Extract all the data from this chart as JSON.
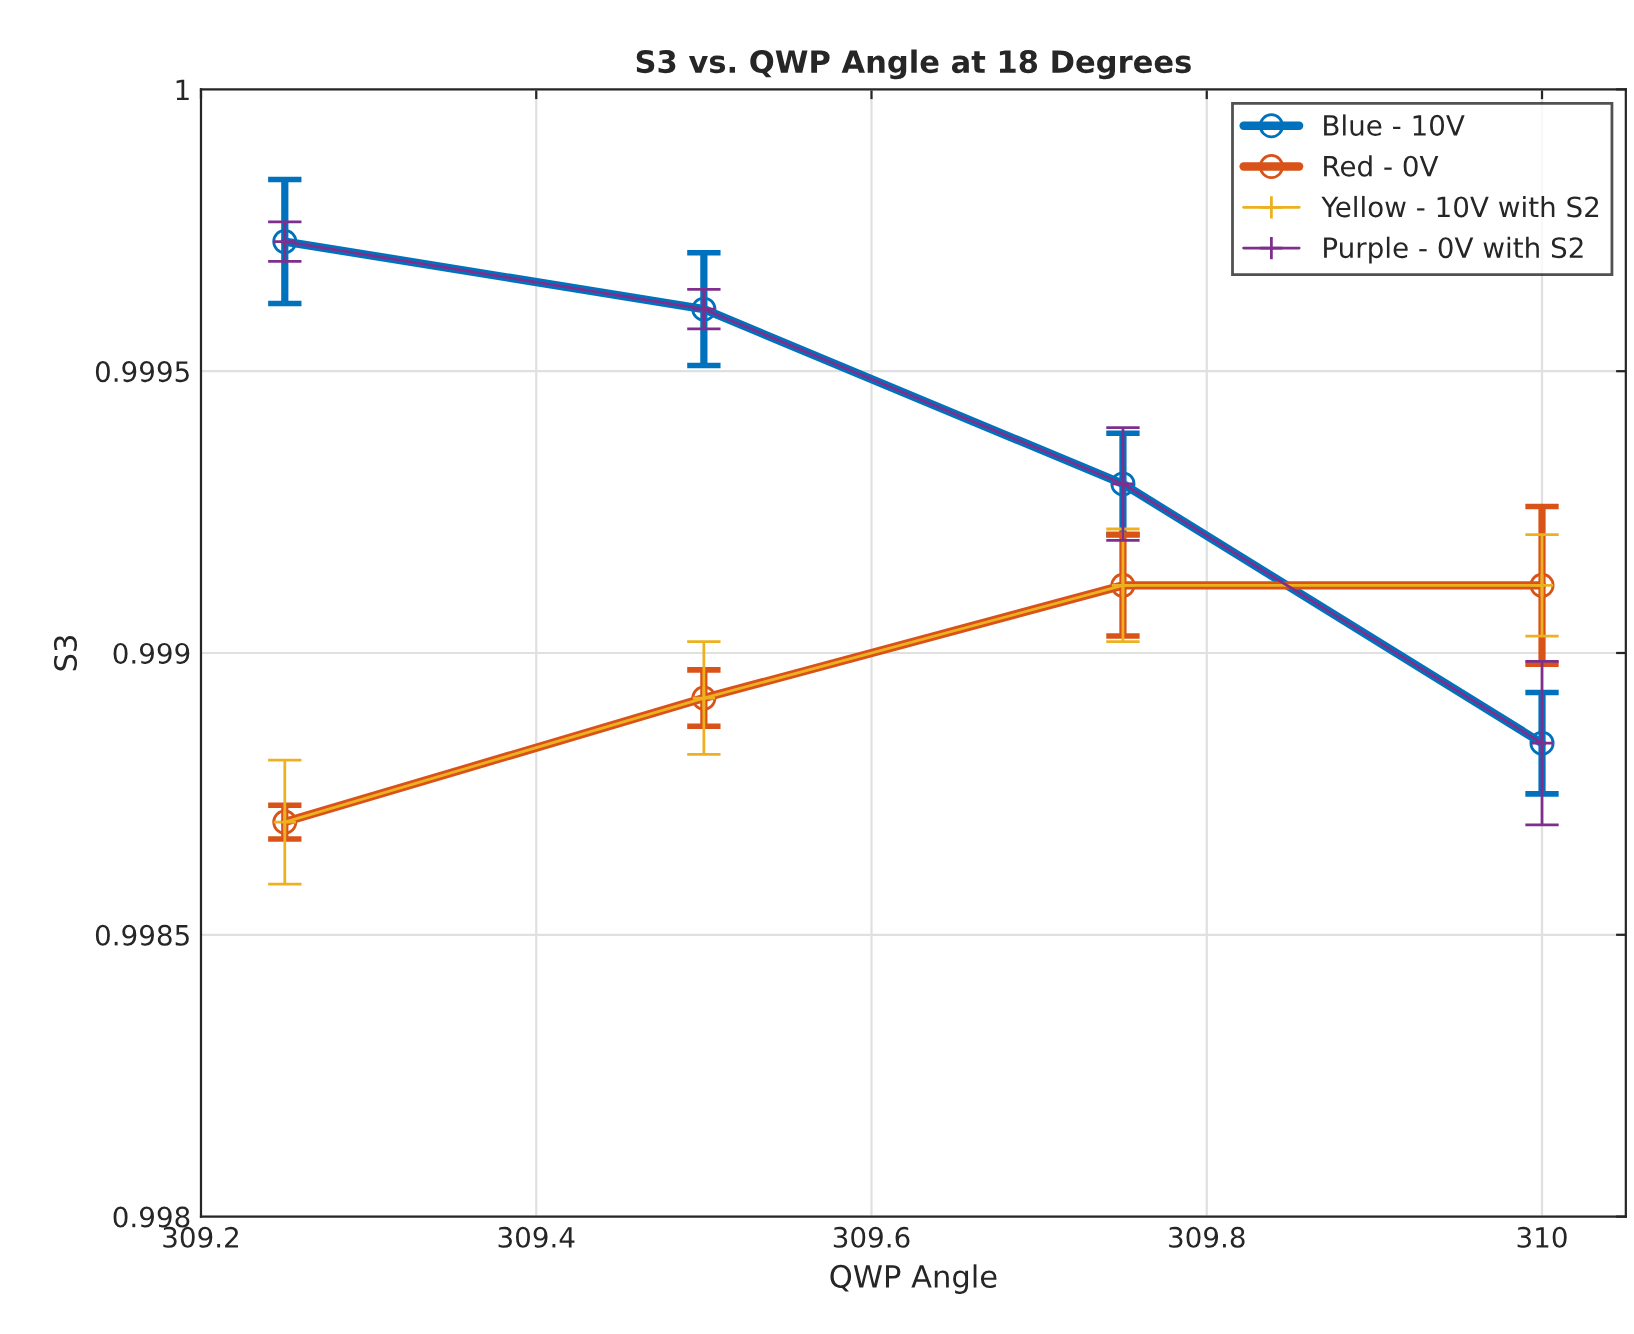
{
  "chart_data": {
    "type": "line",
    "title": "S3 vs. QWP Angle at 18 Degrees",
    "xlabel": "QWP Angle",
    "ylabel": "S3",
    "x": [
      309.25,
      309.5,
      309.75,
      310
    ],
    "series": [
      {
        "name": "Blue - 10V",
        "color": "#0072bd",
        "marker": "circle",
        "values": [
          0.99973,
          0.99961,
          0.9993,
          0.99884
        ],
        "errors": [
          0.00011,
          0.0001,
          9e-05,
          9e-05
        ]
      },
      {
        "name": "Red - 0V",
        "color": "#d95319",
        "marker": "circle",
        "values": [
          0.9987,
          0.99892,
          0.99912,
          0.99912
        ],
        "errors": [
          3e-05,
          5e-05,
          9e-05,
          0.00014
        ]
      },
      {
        "name": "Yellow - 10V with S2",
        "color": "#edb120",
        "marker": "cross",
        "values": [
          0.9987,
          0.99892,
          0.99912,
          0.99912
        ],
        "errors": [
          0.00011,
          0.0001,
          0.0001,
          9e-05
        ]
      },
      {
        "name": "Purple - 0V with S2",
        "color": "#7e2f8e",
        "marker": "cross",
        "values": [
          0.99973,
          0.99961,
          0.9993,
          0.99884
        ],
        "errors": [
          3.5e-05,
          3.5e-05,
          0.0001,
          0.000145
        ]
      }
    ],
    "xlim": [
      309.2,
      310.05
    ],
    "xticks": [
      309.2,
      309.4,
      309.6,
      309.8,
      310
    ],
    "ylim": [
      0.998,
      1
    ],
    "yticks": [
      0.998,
      0.9985,
      0.999,
      0.9995,
      1
    ],
    "grid": true,
    "legend": "top right",
    "line_style": "solid"
  }
}
